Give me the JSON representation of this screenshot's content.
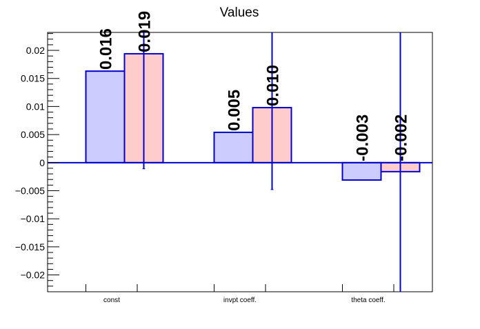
{
  "chart_data": {
    "type": "bar",
    "title": "Values",
    "xlabel": "",
    "ylabel": "",
    "categories": [
      "const",
      "invpt coeff.",
      "theta coeff."
    ],
    "ylim": [
      -0.023,
      0.0232
    ],
    "yticks": [
      -0.02,
      -0.015,
      -0.01,
      -0.005,
      0,
      0.005,
      0.01,
      0.015,
      0.02
    ],
    "ytick_labels": [
      "−0.02",
      "−0.015",
      "−0.01",
      "−0.005",
      "0",
      "0.005",
      "0.01",
      "0.015",
      "0.02"
    ],
    "grid": false,
    "series": [
      {
        "color_fill": "#ccccff",
        "color_edge": "#0000cc",
        "values": [
          0.0163,
          0.0054,
          -0.0031
        ],
        "value_labels": [
          "0.016",
          "0.005",
          "-0.003"
        ],
        "errors": [
          null,
          null,
          null
        ]
      },
      {
        "color_fill": "#ffcccc",
        "color_edge": "#0000cc",
        "values": [
          0.0194,
          0.0098,
          -0.0016
        ],
        "value_labels": [
          "0.019",
          "0.010",
          "-0.002"
        ],
        "errors": [
          0.0205,
          0.0146,
          0.06
        ]
      }
    ]
  }
}
